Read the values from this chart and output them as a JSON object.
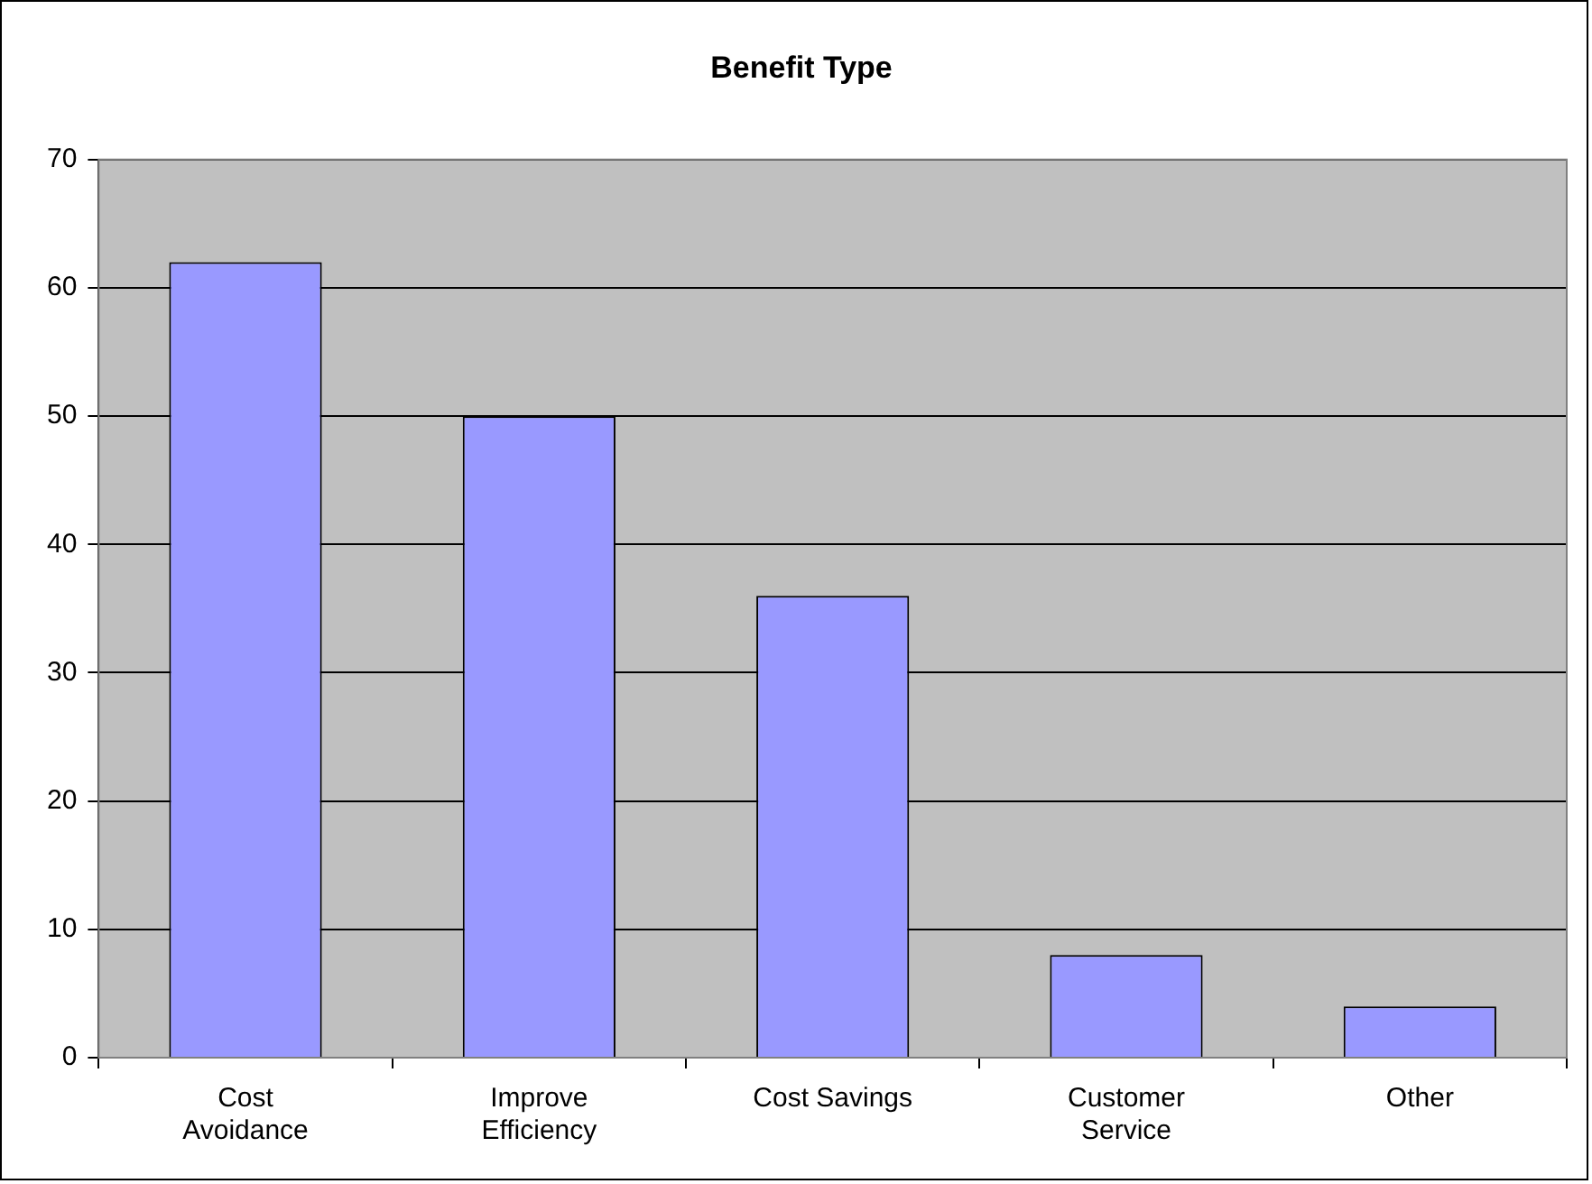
{
  "chart_data": {
    "type": "bar",
    "title": "Benefit Type",
    "categories": [
      "Cost Avoidance",
      "Improve Efficiency",
      "Cost Savings",
      "Customer Service",
      "Other"
    ],
    "values": [
      62,
      50,
      36,
      8,
      4
    ],
    "color": "#9999ff",
    "ylim": [
      0,
      70
    ],
    "yticks": [
      0,
      10,
      20,
      30,
      40,
      50,
      60,
      70
    ],
    "grid": "y",
    "legend": false
  }
}
